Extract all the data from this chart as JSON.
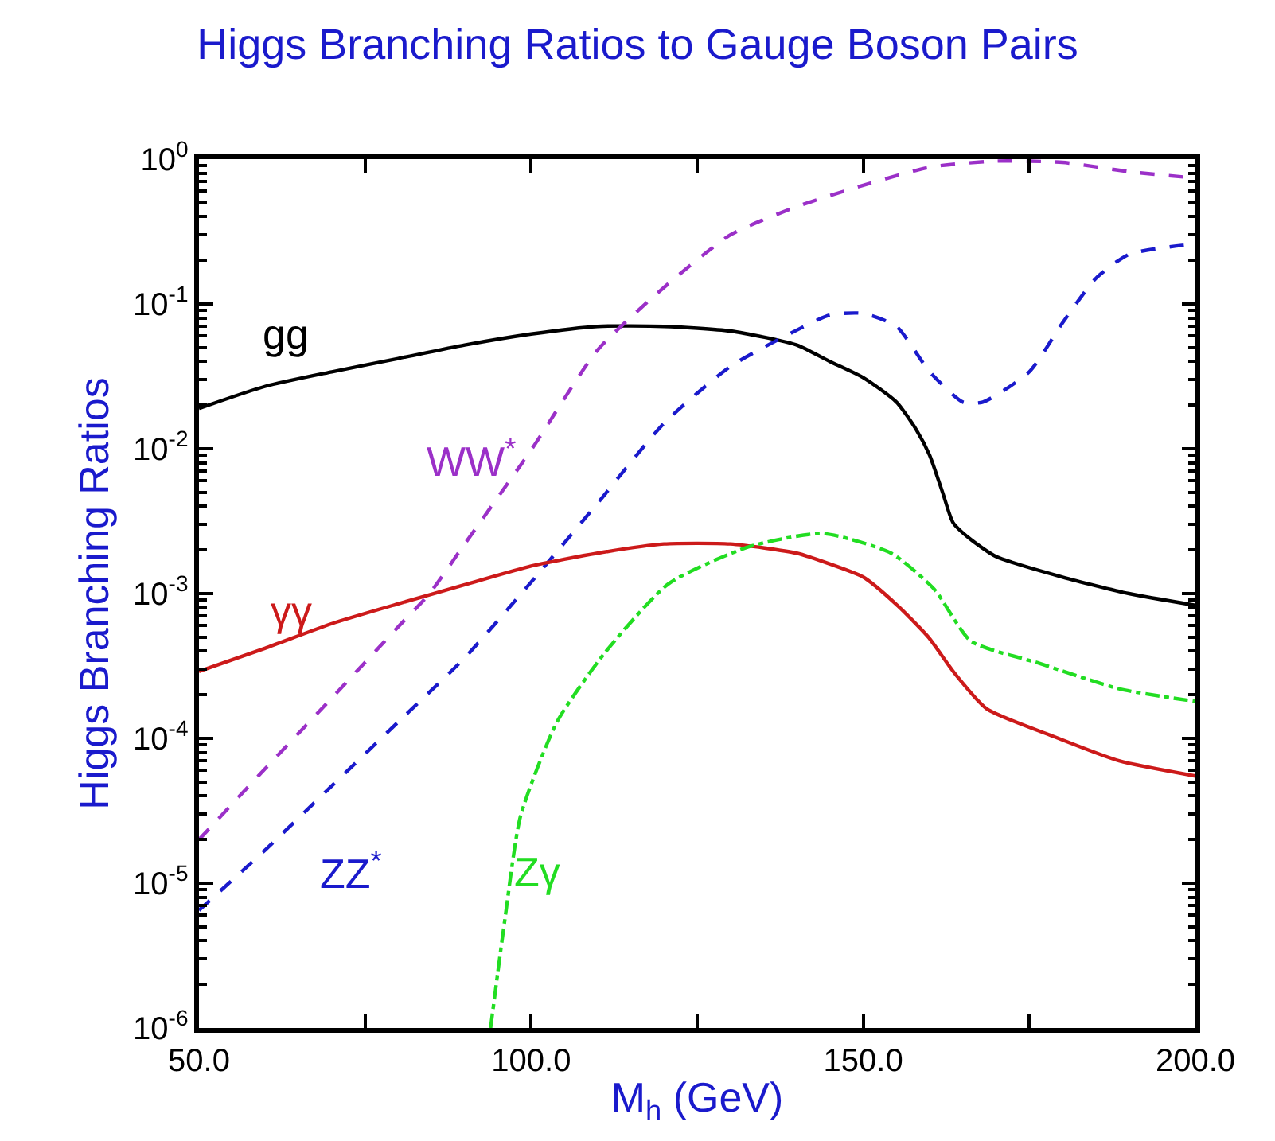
{
  "chart_data": {
    "type": "line",
    "title": "Higgs Branching Ratios to Gauge Boson Pairs",
    "xlabel": "M$_{h}$ (GeV)",
    "ylabel": "Higgs Branching Ratios",
    "log": "y",
    "legend": false,
    "marker": "none",
    "xlim": [
      50,
      200
    ],
    "xticks": [
      {
        "value": 50,
        "label": "50.0"
      },
      {
        "value": 75,
        "label": null
      },
      {
        "value": 100,
        "label": "100.0"
      },
      {
        "value": 125,
        "label": null
      },
      {
        "value": 150,
        "label": "150.0"
      },
      {
        "value": 175,
        "label": null
      },
      {
        "value": 200,
        "label": "200.0"
      }
    ],
    "ylim": [
      1e-06,
      1
    ],
    "yticks": [
      {
        "value": 1e-06,
        "label": "10$^{-6}$"
      },
      {
        "value": 1e-05,
        "label": "10$^{-5}$"
      },
      {
        "value": 0.0001,
        "label": "10$^{-4}$"
      },
      {
        "value": 0.001,
        "label": "10$^{-3}$"
      },
      {
        "value": 0.01,
        "label": "10$^{-2}$"
      },
      {
        "value": 0.1,
        "label": "10$^{-1}$"
      },
      {
        "value": 1,
        "label": "10$^{0}$"
      }
    ],
    "series": [
      {
        "name": "gg",
        "color": "#000000",
        "line_style": "solid",
        "x": [
          50,
          60,
          70,
          80,
          90,
          100,
          110,
          120,
          130,
          140,
          145,
          150,
          155,
          158,
          160,
          162,
          163.5,
          166,
          170,
          180,
          190,
          200
        ],
        "values": [
          0.019,
          0.027,
          0.034,
          0.042,
          0.052,
          0.062,
          0.07,
          0.07,
          0.065,
          0.052,
          0.04,
          0.031,
          0.021,
          0.0135,
          0.009,
          0.0049,
          0.0031,
          0.0024,
          0.0018,
          0.0013,
          0.001,
          0.00083
        ]
      },
      {
        "name": "WW$^{*}$",
        "color": "#9b30c8",
        "line_style": "dashed",
        "x": [
          50,
          60,
          70,
          80,
          84.7,
          90,
          100,
          110,
          120,
          130,
          140,
          150,
          160,
          170,
          180,
          190,
          200
        ],
        "values": [
          2e-05,
          6.2e-05,
          0.00019,
          0.00059,
          0.001,
          0.0022,
          0.0098,
          0.048,
          0.13,
          0.3,
          0.47,
          0.66,
          0.88,
          0.97,
          0.95,
          0.82,
          0.74
        ]
      },
      {
        "name": "ZZ$^{*}$",
        "color": "#1a1acc",
        "line_style": "dashed",
        "x": [
          50,
          60,
          70,
          80,
          90,
          100,
          110,
          120,
          130,
          140,
          145,
          150,
          155,
          160,
          165,
          168,
          175,
          180,
          185,
          190,
          200
        ],
        "values": [
          6.5e-06,
          1.7e-05,
          4.7e-05,
          0.00013,
          0.00036,
          0.0012,
          0.0042,
          0.015,
          0.037,
          0.066,
          0.084,
          0.086,
          0.07,
          0.034,
          0.021,
          0.021,
          0.034,
          0.074,
          0.15,
          0.22,
          0.26
        ]
      },
      {
        "name": "γγ",
        "color": "#cc1a1a",
        "line_style": "solid",
        "x": [
          50,
          60,
          70,
          80,
          90,
          100,
          110,
          120,
          130,
          140,
          145,
          150,
          155,
          159.8,
          163.8,
          168.6,
          178.2,
          188.5,
          200
        ],
        "values": [
          0.00029,
          0.00042,
          0.00062,
          0.00085,
          0.00115,
          0.00155,
          0.0019,
          0.0022,
          0.0022,
          0.0019,
          0.0016,
          0.0013,
          0.00084,
          0.0005,
          0.00028,
          0.00016,
          0.000105,
          7e-05,
          5.5e-05
        ]
      },
      {
        "name": "Zγ",
        "color": "#22dd22",
        "line_style": "dashdot",
        "x": [
          93.9,
          96,
          98.4,
          103.9,
          111.1,
          120.7,
          132.7,
          143.9,
          154.2,
          160.7,
          166.2,
          176.5,
          188.5,
          200
        ],
        "values": [
          1e-06,
          5.4e-06,
          2.9e-05,
          0.00013,
          0.00039,
          0.00117,
          0.0021,
          0.0026,
          0.0019,
          0.00107,
          0.00047,
          0.00033,
          0.00022,
          0.00018
        ]
      }
    ]
  }
}
